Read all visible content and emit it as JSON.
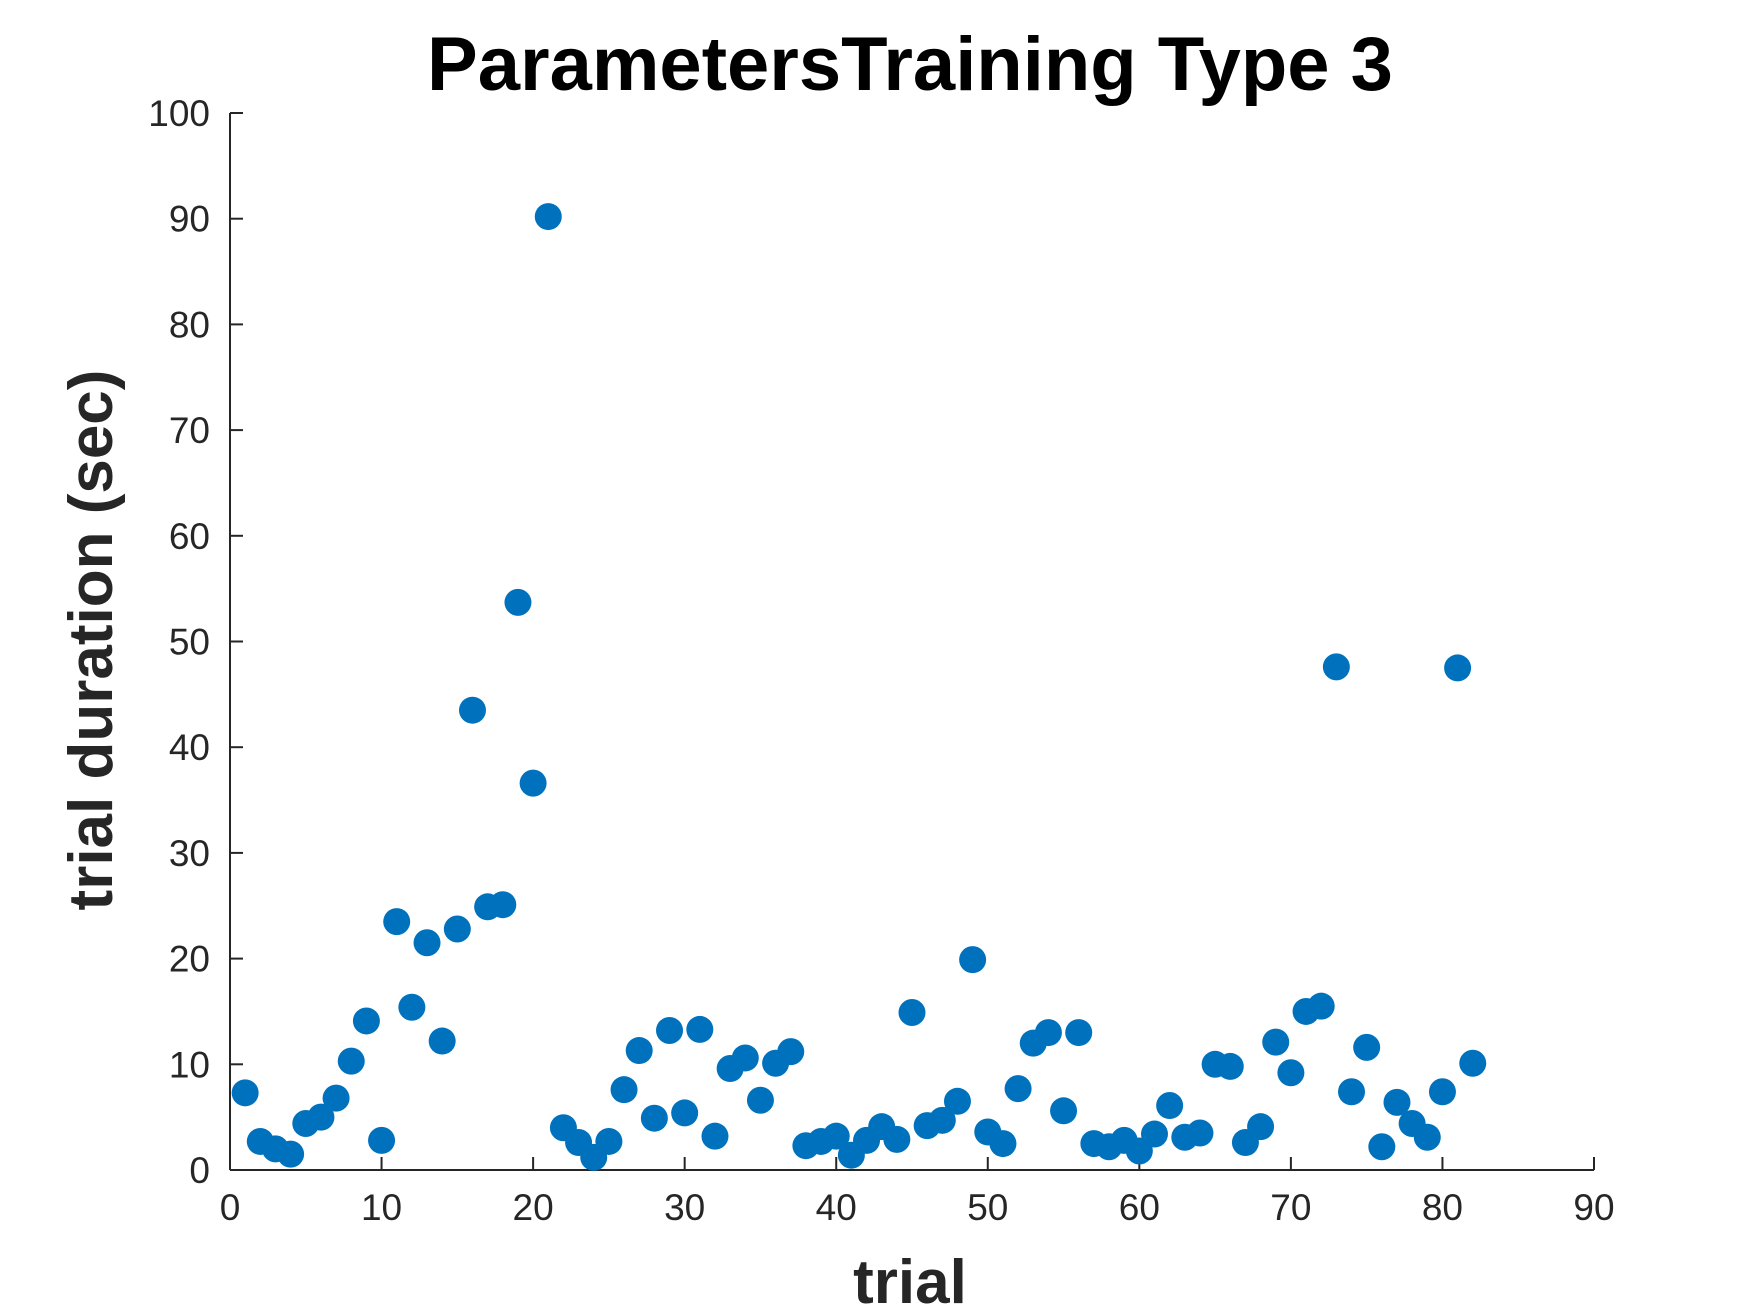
{
  "chart_data": {
    "type": "scatter",
    "title": "ParametersTraining Type 3",
    "xlabel": "trial",
    "ylabel": "trial duration (sec)",
    "xlim": [
      0,
      90
    ],
    "ylim": [
      0,
      100
    ],
    "xticks": [
      0,
      10,
      20,
      30,
      40,
      50,
      60,
      70,
      80,
      90
    ],
    "yticks": [
      0,
      10,
      20,
      30,
      40,
      50,
      60,
      70,
      80,
      90,
      100
    ],
    "grid": false,
    "marker_color": "#0072BD",
    "series": [
      {
        "x": [
          1,
          2,
          3,
          4,
          5,
          6,
          7,
          8,
          9,
          10,
          11,
          12,
          13,
          14,
          15,
          16,
          17,
          18,
          19,
          20,
          21,
          22,
          23,
          24,
          25,
          26,
          27,
          28,
          29,
          30,
          31,
          32,
          33,
          34,
          35,
          36,
          37,
          38,
          39,
          40,
          41,
          42,
          43,
          44,
          45,
          46,
          47,
          48,
          49,
          50,
          51,
          52,
          53,
          54,
          55,
          56,
          57,
          58,
          59,
          60,
          61,
          62,
          63,
          64,
          65,
          66,
          67,
          68,
          69,
          70,
          71,
          72,
          73,
          74,
          75,
          76,
          77,
          78,
          79,
          80,
          81,
          82
        ],
        "y": [
          7.3,
          2.7,
          2.0,
          1.5,
          4.4,
          5.0,
          6.8,
          10.3,
          14.1,
          2.8,
          23.5,
          15.4,
          21.5,
          12.2,
          22.8,
          43.5,
          24.9,
          25.1,
          53.7,
          36.6,
          90.2,
          4.0,
          2.6,
          1.2,
          2.7,
          7.6,
          11.3,
          4.9,
          13.2,
          5.4,
          13.3,
          3.2,
          9.6,
          10.6,
          6.6,
          10.1,
          11.2,
          2.3,
          2.7,
          3.2,
          1.4,
          2.8,
          4.1,
          2.9,
          14.9,
          4.2,
          4.7,
          6.5,
          19.9,
          3.6,
          2.5,
          7.7,
          12.0,
          13.0,
          5.6,
          13.0,
          2.5,
          2.2,
          2.8,
          1.8,
          3.4,
          6.1,
          3.1,
          3.5,
          10.0,
          9.8,
          2.6,
          4.1,
          12.1,
          9.2,
          15.0,
          15.5,
          47.6,
          7.4,
          11.6,
          2.2,
          6.4,
          4.4,
          3.1,
          7.4,
          47.5,
          10.1
        ]
      }
    ]
  }
}
